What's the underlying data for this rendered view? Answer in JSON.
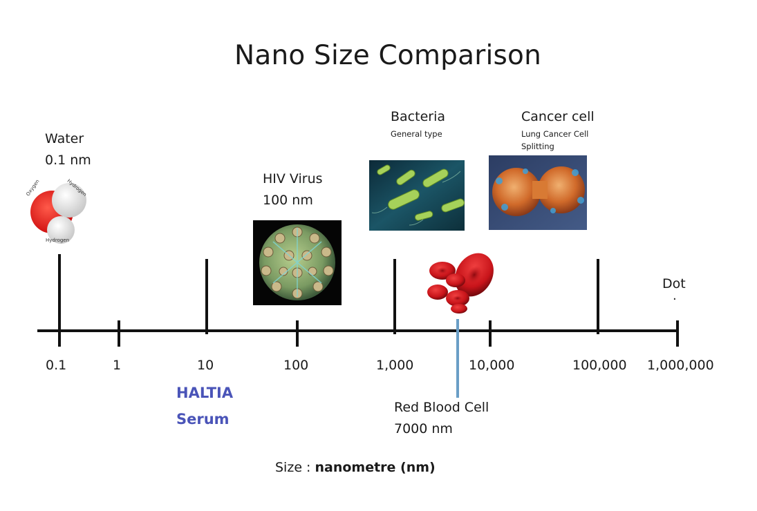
{
  "title": "Nano Size Comparison",
  "scale": {
    "ticks": [
      "0.1",
      "1",
      "10",
      "100",
      "1,000",
      "10,000",
      "100,000",
      "1,000,000"
    ],
    "unit_prefix": "Size : ",
    "unit_bold": "nanometre (nm)"
  },
  "items": {
    "water": {
      "name": "Water",
      "size": "0.1 nm",
      "atom_labels": [
        "Oxygen",
        "Hydrogen",
        "Hydrogen"
      ]
    },
    "hiv": {
      "name": "HIV Virus",
      "size": "100 nm"
    },
    "bacteria": {
      "name": "Bacteria",
      "note": "General type"
    },
    "cancer": {
      "name": "Cancer cell",
      "note_line1": "Lung Cancer Cell",
      "note_line2": "Splitting"
    },
    "rbc": {
      "name": "Red Blood Cell",
      "size": "7000 nm"
    },
    "dot": {
      "name": "Dot",
      "mark": "."
    },
    "haltia": {
      "line1": "HALTIA",
      "line2": "Serum"
    }
  },
  "colors": {
    "axis": "#111111",
    "haltia": "#4a54b8",
    "rbc_marker": "#6a9ec6",
    "blood": "#c8141a"
  }
}
